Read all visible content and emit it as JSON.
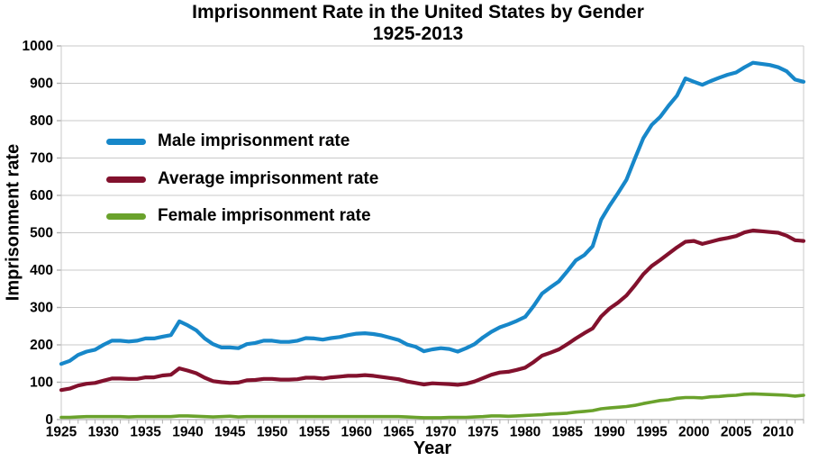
{
  "title": {
    "line1": "Imprisonment Rate in the United States by Gender",
    "line2": "1925-2013"
  },
  "axes": {
    "y_title": "Imprisonment rate",
    "x_title": "Year",
    "y_ticks": [
      0,
      100,
      200,
      300,
      400,
      500,
      600,
      700,
      800,
      900,
      1000
    ],
    "x_tick_labels": [
      1925,
      1930,
      1935,
      1940,
      1945,
      1950,
      1955,
      1960,
      1965,
      1970,
      1975,
      1980,
      1985,
      1990,
      1995,
      2000,
      2005,
      2010
    ]
  },
  "colors": {
    "male": "#1787C9",
    "average": "#82112D",
    "female": "#6AA22C",
    "grid": "#C9C9C9",
    "axis": "#B0B0B0",
    "text": "#000000",
    "background": "#FFFFFF"
  },
  "chart_data": {
    "type": "line",
    "title": "Imprisonment Rate in the United States by Gender 1925-2013",
    "xlabel": "Year",
    "ylabel": "Imprisonment rate",
    "xlim": [
      1925,
      2013
    ],
    "ylim": [
      0,
      1000
    ],
    "grid": "horizontal",
    "legend_position": "upper-left-inside",
    "x": [
      1925,
      1926,
      1927,
      1928,
      1929,
      1930,
      1931,
      1932,
      1933,
      1934,
      1935,
      1936,
      1937,
      1938,
      1939,
      1940,
      1941,
      1942,
      1943,
      1944,
      1945,
      1946,
      1947,
      1948,
      1949,
      1950,
      1951,
      1952,
      1953,
      1954,
      1955,
      1956,
      1957,
      1958,
      1959,
      1960,
      1961,
      1962,
      1963,
      1964,
      1965,
      1966,
      1967,
      1968,
      1969,
      1970,
      1971,
      1972,
      1973,
      1974,
      1975,
      1976,
      1977,
      1978,
      1979,
      1980,
      1981,
      1982,
      1983,
      1984,
      1985,
      1986,
      1987,
      1988,
      1989,
      1990,
      1991,
      1992,
      1993,
      1994,
      1995,
      1996,
      1997,
      1998,
      1999,
      2000,
      2001,
      2002,
      2003,
      2004,
      2005,
      2006,
      2007,
      2008,
      2009,
      2010,
      2011,
      2012,
      2013
    ],
    "series": [
      {
        "name": "Male imprisonment rate",
        "color": "#1787C9",
        "values": [
          149,
          157,
          173,
          182,
          187,
          200,
          211,
          211,
          209,
          211,
          217,
          217,
          222,
          226,
          263,
          252,
          239,
          217,
          202,
          193,
          193,
          191,
          202,
          205,
          211,
          211,
          208,
          208,
          211,
          218,
          217,
          214,
          218,
          221,
          226,
          230,
          231,
          229,
          225,
          219,
          213,
          201,
          195,
          183,
          188,
          191,
          189,
          182,
          191,
          202,
          220,
          235,
          247,
          255,
          264,
          275,
          304,
          337,
          354,
          370,
          397,
          426,
          440,
          464,
          535,
          572,
          606,
          642,
          698,
          753,
          789,
          810,
          840,
          867,
          913,
          904,
          896,
          906,
          915,
          923,
          929,
          943,
          955,
          952,
          949,
          943,
          932,
          910,
          904
        ]
      },
      {
        "name": "Average imprisonment rate",
        "color": "#82112D",
        "values": [
          79,
          83,
          91,
          96,
          98,
          104,
          110,
          110,
          109,
          109,
          113,
          113,
          118,
          120,
          137,
          131,
          124,
          112,
          103,
          100,
          98,
          99,
          105,
          106,
          109,
          109,
          107,
          107,
          108,
          112,
          112,
          110,
          113,
          115,
          117,
          117,
          119,
          117,
          114,
          111,
          108,
          102,
          98,
          94,
          97,
          96,
          95,
          93,
          96,
          102,
          111,
          120,
          126,
          128,
          133,
          139,
          154,
          171,
          179,
          188,
          202,
          217,
          231,
          244,
          276,
          297,
          313,
          332,
          359,
          389,
          411,
          427,
          444,
          461,
          476,
          478,
          470,
          476,
          482,
          486,
          491,
          501,
          506,
          504,
          502,
          500,
          492,
          480,
          478
        ]
      },
      {
        "name": "Female imprisonment rate",
        "color": "#6AA22C",
        "values": [
          6,
          6,
          7,
          8,
          8,
          8,
          8,
          8,
          7,
          8,
          8,
          8,
          8,
          8,
          10,
          10,
          9,
          8,
          7,
          8,
          9,
          7,
          8,
          8,
          8,
          8,
          8,
          8,
          8,
          8,
          8,
          8,
          8,
          8,
          8,
          8,
          8,
          8,
          8,
          8,
          8,
          7,
          6,
          5,
          5,
          5,
          6,
          6,
          6,
          7,
          8,
          10,
          10,
          9,
          10,
          11,
          12,
          13,
          15,
          16,
          17,
          20,
          22,
          24,
          29,
          31,
          33,
          35,
          38,
          43,
          47,
          51,
          53,
          57,
          59,
          59,
          58,
          61,
          62,
          64,
          65,
          68,
          69,
          68,
          67,
          66,
          65,
          63,
          65
        ]
      }
    ]
  }
}
